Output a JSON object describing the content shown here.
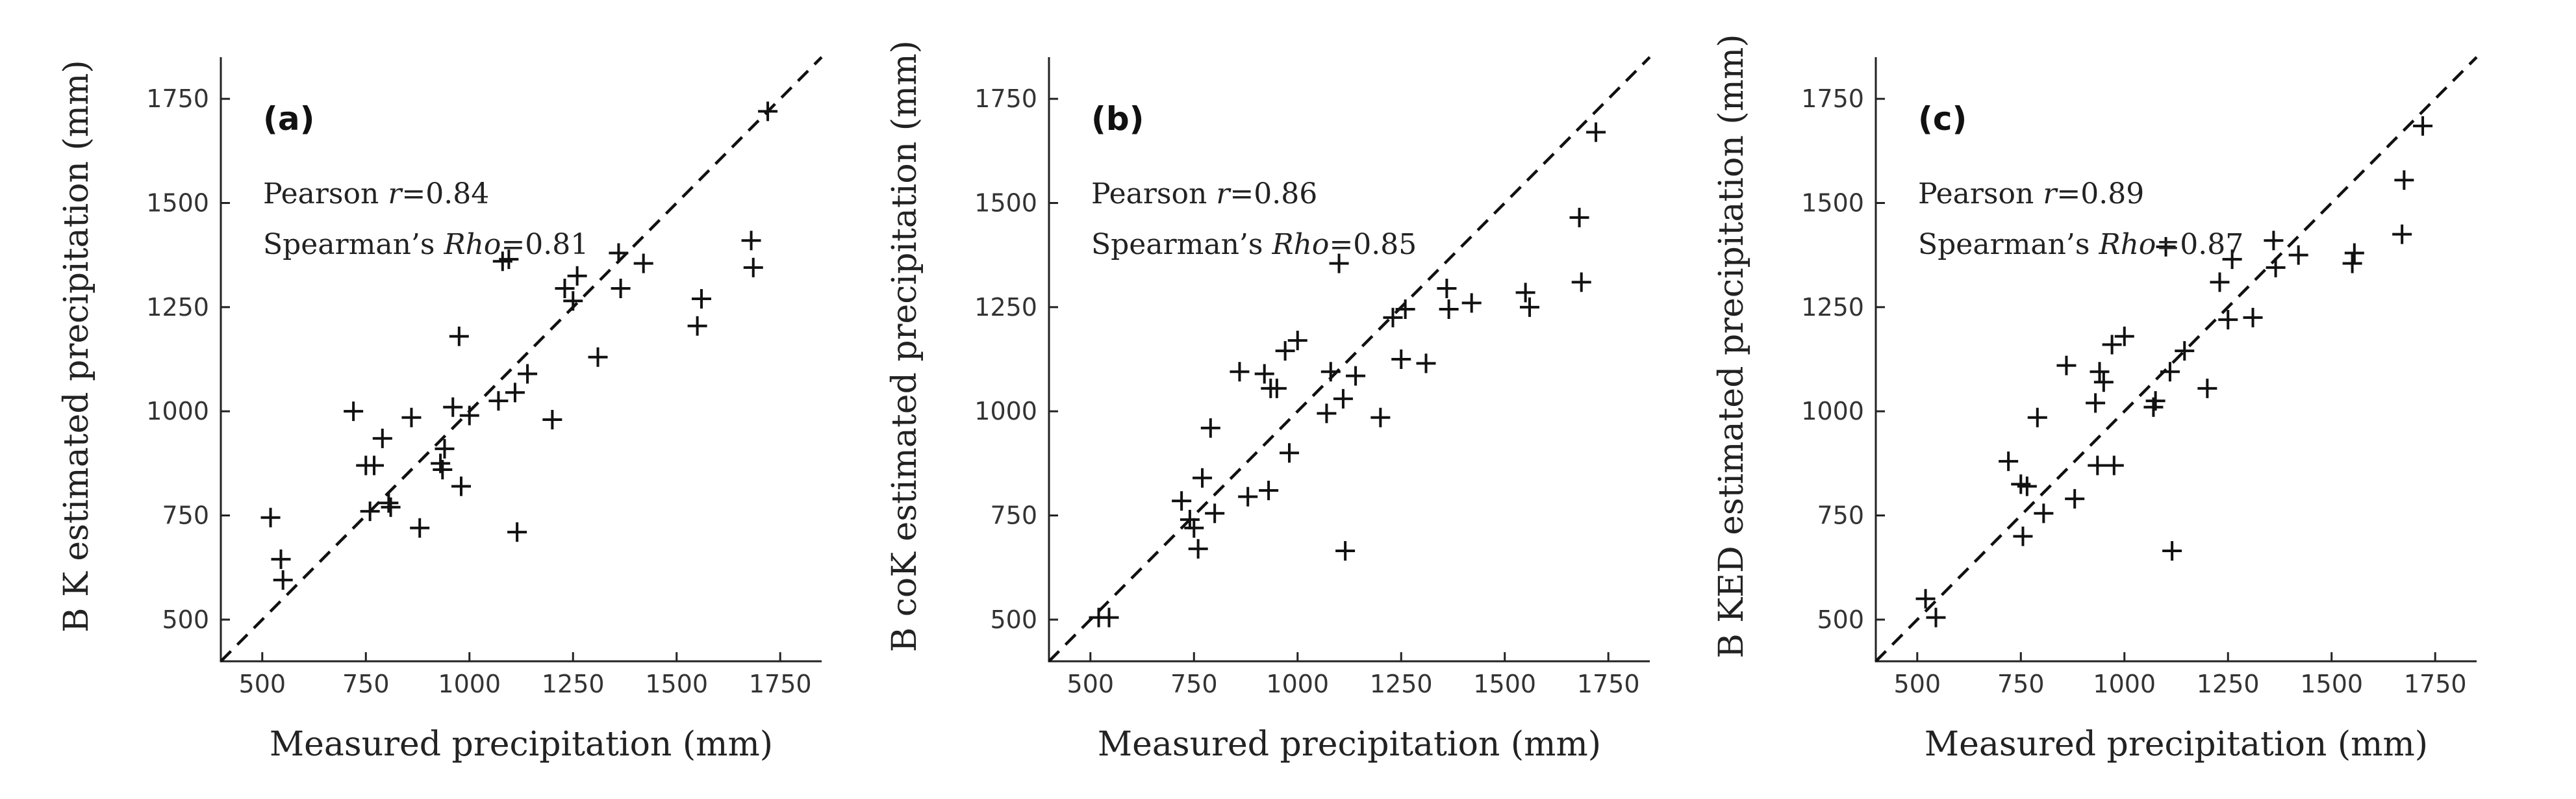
{
  "chart_data": [
    {
      "type": "scatter",
      "panel": "(a)",
      "xlabel": "Measured precipitation (mm)",
      "ylabel": "B K estimated precipitation (mm)",
      "xlim": [
        400,
        1850
      ],
      "ylim": [
        400,
        1850
      ],
      "xticks": [
        500,
        750,
        1000,
        1250,
        1500,
        1750
      ],
      "yticks": [
        500,
        750,
        1000,
        1250,
        1500,
        1750
      ],
      "reference_line": "1:1 dashed",
      "stats": [
        {
          "label": "Pearson ",
          "symbol": "r",
          "value": "=0.84"
        },
        {
          "label": "Spearman’s ",
          "symbol": "Rho",
          "value": "=0.81"
        }
      ],
      "points": [
        [
          520,
          745
        ],
        [
          545,
          645
        ],
        [
          550,
          595
        ],
        [
          720,
          1000
        ],
        [
          750,
          870
        ],
        [
          760,
          760
        ],
        [
          770,
          870
        ],
        [
          790,
          935
        ],
        [
          805,
          780
        ],
        [
          810,
          770
        ],
        [
          860,
          985
        ],
        [
          880,
          720
        ],
        [
          930,
          875
        ],
        [
          935,
          860
        ],
        [
          940,
          910
        ],
        [
          960,
          1010
        ],
        [
          975,
          1180
        ],
        [
          980,
          820
        ],
        [
          1000,
          990
        ],
        [
          1070,
          1025
        ],
        [
          1080,
          1360
        ],
        [
          1095,
          1365
        ],
        [
          1110,
          1045
        ],
        [
          1115,
          710
        ],
        [
          1140,
          1090
        ],
        [
          1200,
          980
        ],
        [
          1230,
          1295
        ],
        [
          1250,
          1265
        ],
        [
          1260,
          1325
        ],
        [
          1310,
          1130
        ],
        [
          1360,
          1380
        ],
        [
          1365,
          1295
        ],
        [
          1420,
          1355
        ],
        [
          1550,
          1205
        ],
        [
          1560,
          1270
        ],
        [
          1680,
          1410
        ],
        [
          1685,
          1345
        ],
        [
          1720,
          1720
        ]
      ]
    },
    {
      "type": "scatter",
      "panel": "(b)",
      "xlabel": "Measured precipitation (mm)",
      "ylabel": "B coK estimated precipitation (mm)",
      "xlim": [
        400,
        1850
      ],
      "ylim": [
        400,
        1850
      ],
      "xticks": [
        500,
        750,
        1000,
        1250,
        1500,
        1750
      ],
      "yticks": [
        500,
        750,
        1000,
        1250,
        1500,
        1750
      ],
      "reference_line": "1:1 dashed",
      "stats": [
        {
          "label": "Pearson ",
          "symbol": "r",
          "value": "=0.86"
        },
        {
          "label": "Spearman’s ",
          "symbol": "Rho",
          "value": "=0.85"
        }
      ],
      "points": [
        [
          520,
          505
        ],
        [
          545,
          505
        ],
        [
          720,
          785
        ],
        [
          740,
          740
        ],
        [
          750,
          720
        ],
        [
          760,
          670
        ],
        [
          770,
          840
        ],
        [
          790,
          960
        ],
        [
          800,
          755
        ],
        [
          860,
          1095
        ],
        [
          880,
          795
        ],
        [
          920,
          1090
        ],
        [
          930,
          810
        ],
        [
          935,
          1055
        ],
        [
          950,
          1055
        ],
        [
          970,
          1145
        ],
        [
          980,
          900
        ],
        [
          1000,
          1170
        ],
        [
          1070,
          995
        ],
        [
          1080,
          1095
        ],
        [
          1100,
          1355
        ],
        [
          1110,
          1030
        ],
        [
          1115,
          665
        ],
        [
          1140,
          1085
        ],
        [
          1200,
          985
        ],
        [
          1230,
          1225
        ],
        [
          1250,
          1125
        ],
        [
          1260,
          1245
        ],
        [
          1310,
          1115
        ],
        [
          1360,
          1295
        ],
        [
          1365,
          1245
        ],
        [
          1420,
          1260
        ],
        [
          1550,
          1285
        ],
        [
          1560,
          1250
        ],
        [
          1680,
          1465
        ],
        [
          1685,
          1310
        ],
        [
          1720,
          1670
        ]
      ]
    },
    {
      "type": "scatter",
      "panel": "(c)",
      "xlabel": "Measured precipitation (mm)",
      "ylabel": "B KED estimated precipitation (mm)",
      "xlim": [
        400,
        1850
      ],
      "ylim": [
        400,
        1850
      ],
      "xticks": [
        500,
        750,
        1000,
        1250,
        1500,
        1750
      ],
      "yticks": [
        500,
        750,
        1000,
        1250,
        1500,
        1750
      ],
      "reference_line": "1:1 dashed",
      "stats": [
        {
          "label": "Pearson ",
          "symbol": "r",
          "value": "=0.89"
        },
        {
          "label": "Spearman’s ",
          "symbol": "Rho",
          "value": "=0.87"
        }
      ],
      "points": [
        [
          520,
          550
        ],
        [
          545,
          505
        ],
        [
          720,
          880
        ],
        [
          750,
          825
        ],
        [
          755,
          700
        ],
        [
          765,
          820
        ],
        [
          790,
          985
        ],
        [
          805,
          755
        ],
        [
          860,
          1110
        ],
        [
          880,
          790
        ],
        [
          930,
          1020
        ],
        [
          935,
          870
        ],
        [
          940,
          1095
        ],
        [
          950,
          1070
        ],
        [
          970,
          1160
        ],
        [
          975,
          870
        ],
        [
          1000,
          1180
        ],
        [
          1070,
          1010
        ],
        [
          1075,
          1025
        ],
        [
          1100,
          1395
        ],
        [
          1110,
          1095
        ],
        [
          1115,
          665
        ],
        [
          1145,
          1145
        ],
        [
          1200,
          1055
        ],
        [
          1230,
          1310
        ],
        [
          1250,
          1220
        ],
        [
          1260,
          1365
        ],
        [
          1310,
          1225
        ],
        [
          1360,
          1410
        ],
        [
          1365,
          1345
        ],
        [
          1420,
          1375
        ],
        [
          1550,
          1355
        ],
        [
          1555,
          1380
        ],
        [
          1670,
          1425
        ],
        [
          1675,
          1555
        ],
        [
          1720,
          1685
        ]
      ]
    }
  ]
}
